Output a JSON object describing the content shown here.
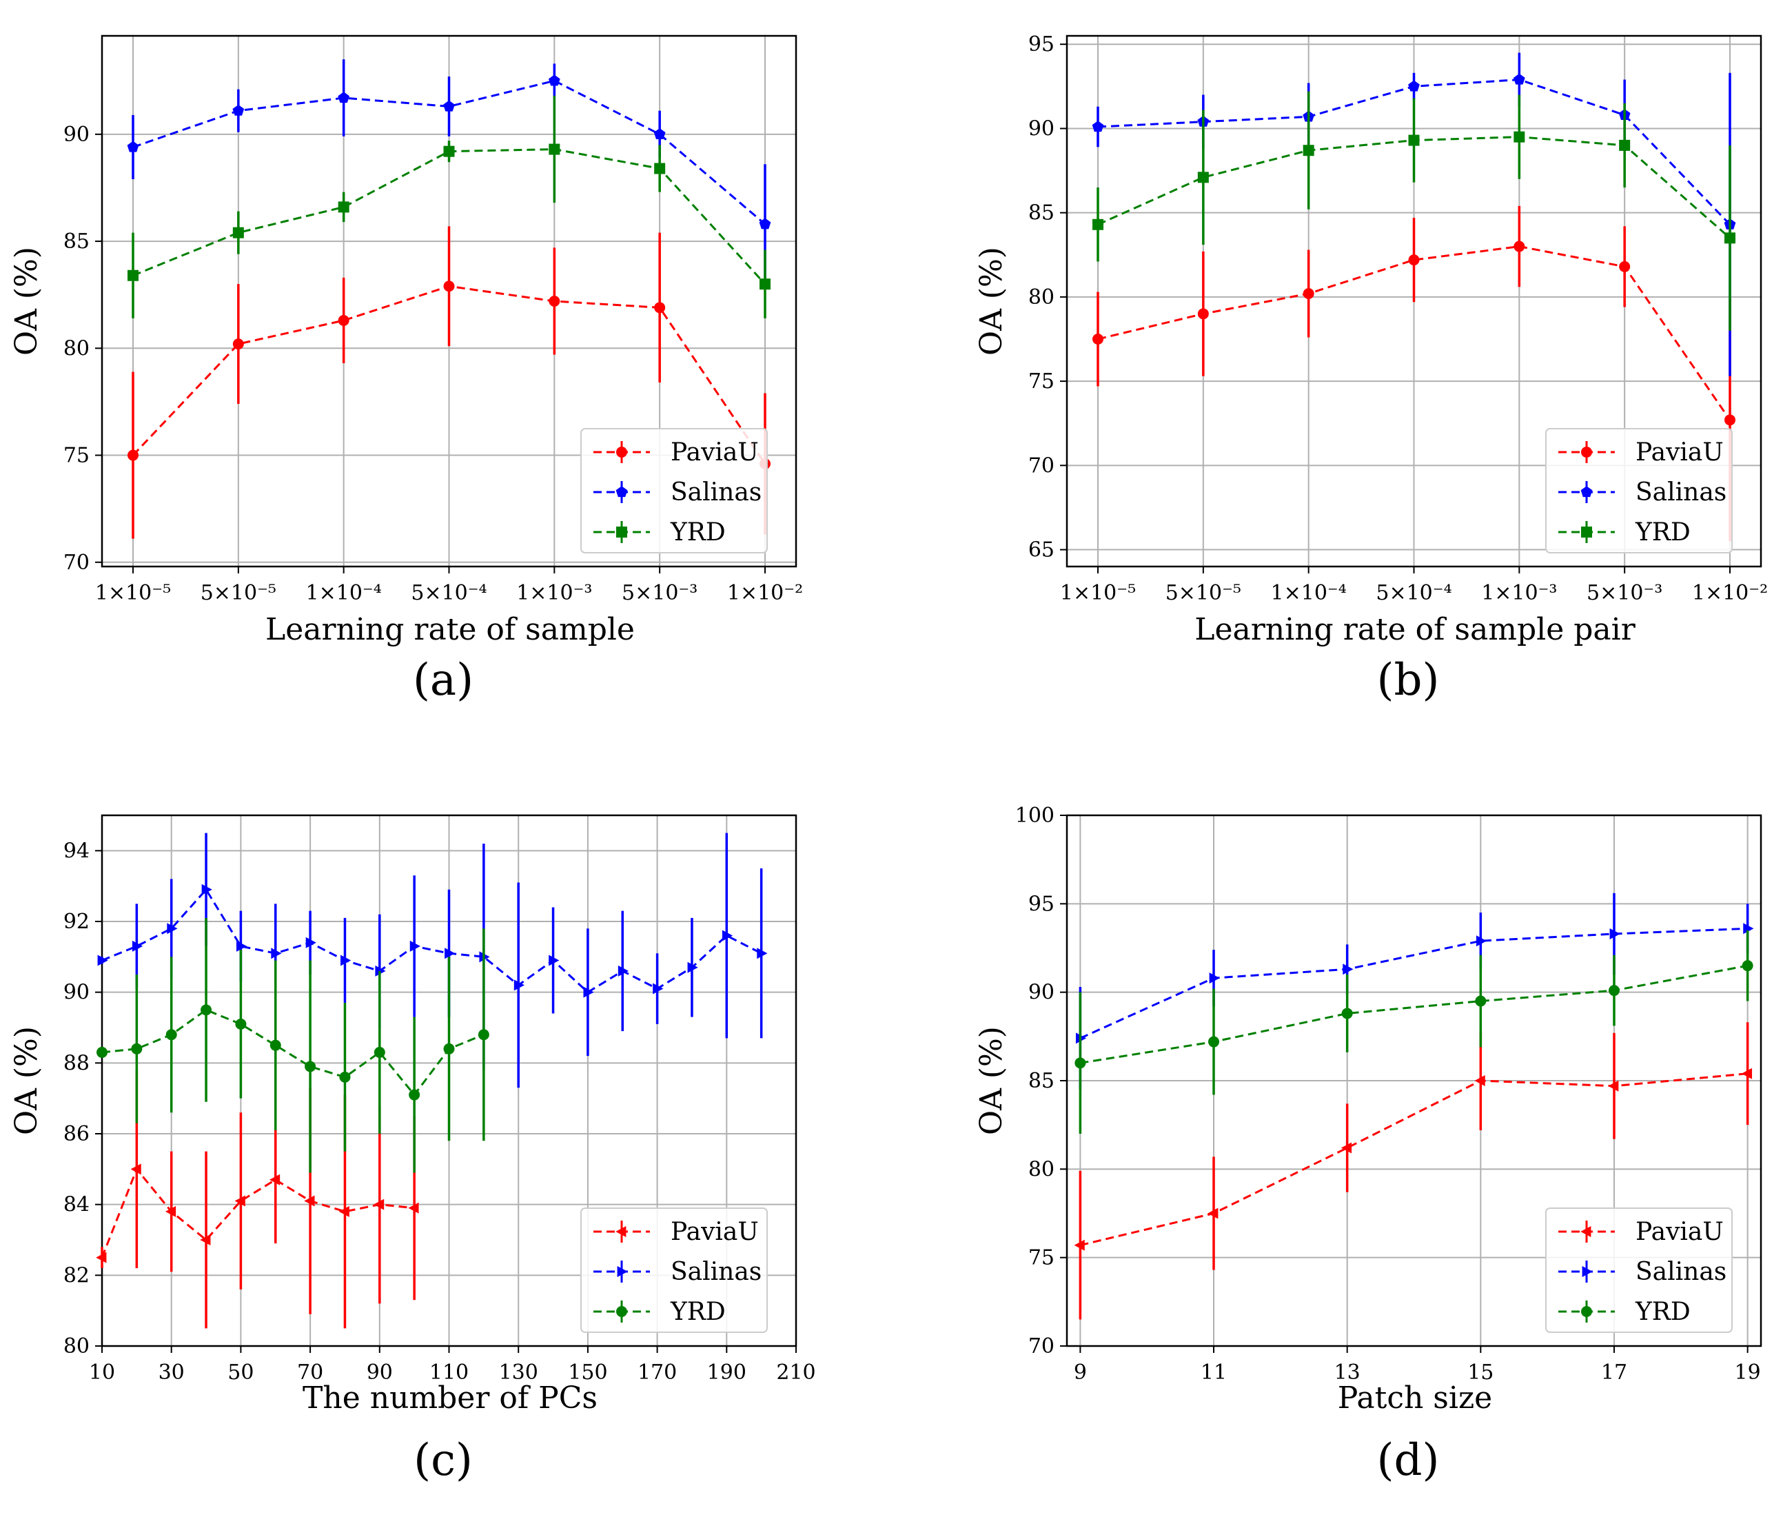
{
  "chart_data": [
    {
      "panel": "(a)",
      "type": "line",
      "xlabel": "Learning rate of sample",
      "ylabel": "OA (%)",
      "ylim": [
        69.8,
        94.6
      ],
      "yticks": [
        70,
        75,
        80,
        85,
        90
      ],
      "ytick_labels": [
        "70",
        "75",
        "80",
        "85",
        "90"
      ],
      "categories": [
        "1×10⁻⁵",
        "5×10⁻⁵",
        "1×10⁻⁴",
        "5×10⁻⁴",
        "1×10⁻³",
        "5×10⁻³",
        "1×10⁻²"
      ],
      "legend_position": "lower-right",
      "series": [
        {
          "name": "PaviaU",
          "color": "#ff0000",
          "marker": "circle",
          "values": [
            75.0,
            80.2,
            81.3,
            82.9,
            82.2,
            81.9,
            74.6
          ],
          "errors": [
            3.9,
            2.8,
            2.0,
            2.8,
            2.5,
            3.5,
            3.3
          ]
        },
        {
          "name": "Salinas",
          "color": "#0000ff",
          "marker": "pentagon",
          "values": [
            89.4,
            91.1,
            91.7,
            91.3,
            92.5,
            90.0,
            85.8
          ],
          "errors": [
            1.5,
            1.0,
            1.8,
            1.4,
            0.8,
            1.1,
            2.8
          ]
        },
        {
          "name": "YRD",
          "color": "#008000",
          "marker": "square",
          "values": [
            83.4,
            85.4,
            86.6,
            89.2,
            89.3,
            88.4,
            83.0
          ],
          "errors": [
            2.0,
            1.0,
            0.7,
            0.5,
            2.5,
            1.1,
            1.6
          ]
        }
      ]
    },
    {
      "panel": "(b)",
      "type": "line",
      "xlabel": "Learning rate of sample pair",
      "ylabel": "OA (%)",
      "ylim": [
        64,
        95.5
      ],
      "yticks": [
        65,
        70,
        75,
        80,
        85,
        90,
        95
      ],
      "ytick_labels": [
        "65",
        "70",
        "75",
        "80",
        "85",
        "90",
        "95"
      ],
      "categories": [
        "1×10⁻⁵",
        "5×10⁻⁵",
        "1×10⁻⁴",
        "5×10⁻⁴",
        "1×10⁻³",
        "5×10⁻³",
        "1×10⁻²"
      ],
      "legend_position": "lower-right",
      "series": [
        {
          "name": "PaviaU",
          "color": "#ff0000",
          "marker": "circle",
          "values": [
            77.5,
            79.0,
            80.2,
            82.2,
            83.0,
            81.8,
            72.7
          ],
          "errors": [
            2.8,
            3.7,
            2.6,
            2.5,
            2.4,
            2.4,
            7.2
          ]
        },
        {
          "name": "Salinas",
          "color": "#0000ff",
          "marker": "pentagon",
          "values": [
            90.1,
            90.4,
            90.7,
            92.5,
            92.9,
            90.8,
            84.3
          ],
          "errors": [
            1.2,
            1.6,
            2.0,
            0.8,
            1.6,
            2.1,
            9.0
          ]
        },
        {
          "name": "YRD",
          "color": "#008000",
          "marker": "square",
          "values": [
            84.3,
            87.1,
            88.7,
            89.3,
            89.5,
            89.0,
            83.5
          ],
          "errors": [
            2.2,
            4.0,
            3.5,
            2.5,
            2.5,
            2.5,
            5.5
          ]
        }
      ]
    },
    {
      "panel": "(c)",
      "type": "line",
      "xlabel": "The number of PCs",
      "ylabel": "OA (%)",
      "xlim": [
        10,
        210
      ],
      "xticks": [
        10,
        30,
        50,
        70,
        90,
        110,
        130,
        150,
        170,
        190,
        210
      ],
      "ylim": [
        80,
        95
      ],
      "yticks": [
        80,
        82,
        84,
        86,
        88,
        90,
        92,
        94
      ],
      "ytick_labels": [
        "80",
        "82",
        "84",
        "86",
        "88",
        "90",
        "92",
        "94"
      ],
      "legend_position": "lower-right",
      "series": [
        {
          "name": "PaviaU",
          "color": "#ff0000",
          "marker": "triangle-left",
          "x": [
            10,
            20,
            30,
            40,
            50,
            60,
            70,
            80,
            90,
            100
          ],
          "values": [
            82.5,
            85.0,
            83.8,
            83.0,
            84.1,
            84.7,
            84.1,
            83.8,
            84.0,
            83.9
          ],
          "errors": [
            0.3,
            2.8,
            1.7,
            2.5,
            2.5,
            1.8,
            3.2,
            3.3,
            2.8,
            2.6
          ]
        },
        {
          "name": "Salinas",
          "color": "#0000ff",
          "marker": "triangle-right",
          "x": [
            10,
            20,
            30,
            40,
            50,
            60,
            70,
            80,
            90,
            100,
            110,
            120,
            130,
            140,
            150,
            160,
            170,
            180,
            190,
            200
          ],
          "values": [
            90.9,
            91.3,
            91.8,
            92.9,
            91.3,
            91.1,
            91.4,
            90.9,
            90.6,
            91.3,
            91.1,
            91.0,
            90.2,
            90.9,
            90.0,
            90.6,
            90.1,
            90.7,
            91.6,
            91.1
          ],
          "errors": [
            0.1,
            1.2,
            1.4,
            1.6,
            1.0,
            1.4,
            0.9,
            1.2,
            1.6,
            2.0,
            1.8,
            3.2,
            2.9,
            1.5,
            1.8,
            1.7,
            1.0,
            1.4,
            2.9,
            2.4
          ]
        },
        {
          "name": "YRD",
          "color": "#008000",
          "marker": "circle",
          "x": [
            10,
            20,
            30,
            40,
            50,
            60,
            70,
            80,
            90,
            100,
            110,
            120
          ],
          "values": [
            88.3,
            88.4,
            88.8,
            89.5,
            89.1,
            88.5,
            87.9,
            87.6,
            88.3,
            87.1,
            88.4,
            88.8
          ],
          "errors": [
            0.1,
            2.1,
            2.2,
            2.6,
            2.1,
            2.4,
            3.0,
            2.1,
            2.3,
            2.2,
            2.6,
            3.0
          ]
        }
      ]
    },
    {
      "panel": "(d)",
      "type": "line",
      "xlabel": "Patch size",
      "ylabel": "OA (%)",
      "xlim": [
        8.8,
        19.2
      ],
      "xticks": [
        9,
        11,
        13,
        15,
        17,
        19
      ],
      "ylim": [
        70,
        100
      ],
      "yticks": [
        70,
        75,
        80,
        85,
        90,
        95,
        100
      ],
      "ytick_labels": [
        "70",
        "75",
        "80",
        "85",
        "90",
        "95",
        "100"
      ],
      "legend_position": "lower-right",
      "series": [
        {
          "name": "PaviaU",
          "color": "#ff0000",
          "marker": "triangle-left",
          "x": [
            9,
            11,
            13,
            15,
            17,
            19
          ],
          "values": [
            75.7,
            77.5,
            81.2,
            85.0,
            84.7,
            85.4
          ],
          "errors": [
            4.2,
            3.2,
            2.5,
            2.8,
            3.0,
            2.9
          ]
        },
        {
          "name": "Salinas",
          "color": "#0000ff",
          "marker": "triangle-right",
          "x": [
            9,
            11,
            13,
            15,
            17,
            19
          ],
          "values": [
            87.4,
            90.8,
            91.3,
            92.9,
            93.3,
            93.6
          ],
          "errors": [
            2.9,
            1.6,
            1.4,
            1.6,
            2.3,
            1.4
          ]
        },
        {
          "name": "YRD",
          "color": "#008000",
          "marker": "circle",
          "x": [
            9,
            11,
            13,
            15,
            17,
            19
          ],
          "values": [
            86.0,
            87.2,
            88.8,
            89.5,
            90.1,
            91.5
          ],
          "errors": [
            4.0,
            3.0,
            2.2,
            2.6,
            2.0,
            2.0
          ]
        }
      ]
    }
  ]
}
